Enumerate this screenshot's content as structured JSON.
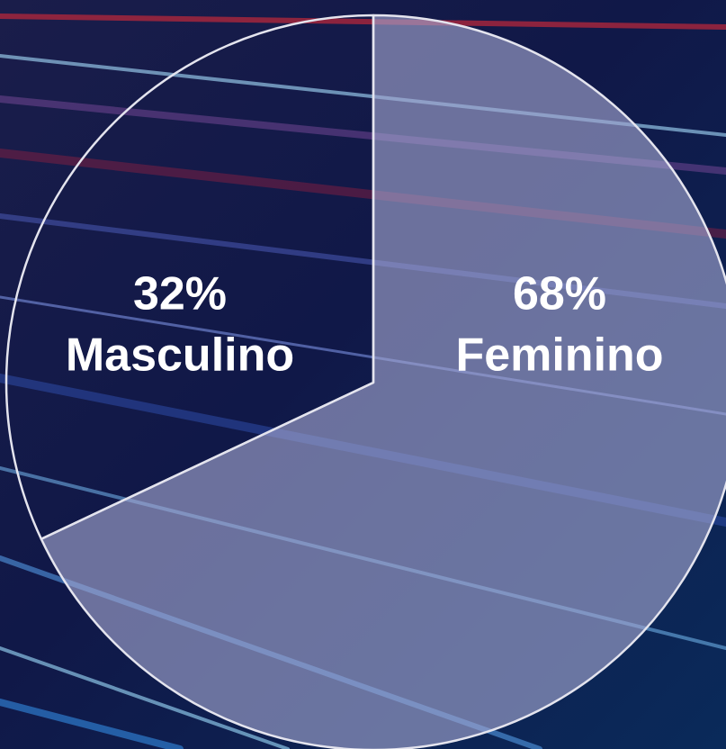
{
  "chart_data": {
    "type": "pie",
    "categories": [
      "Feminino",
      "Masculino"
    ],
    "values": [
      68,
      32
    ],
    "value_labels": [
      "68%",
      "32%"
    ],
    "colors": [
      "rgba(165,168,210,0.62)",
      "rgba(0,0,0,0)"
    ]
  }
}
